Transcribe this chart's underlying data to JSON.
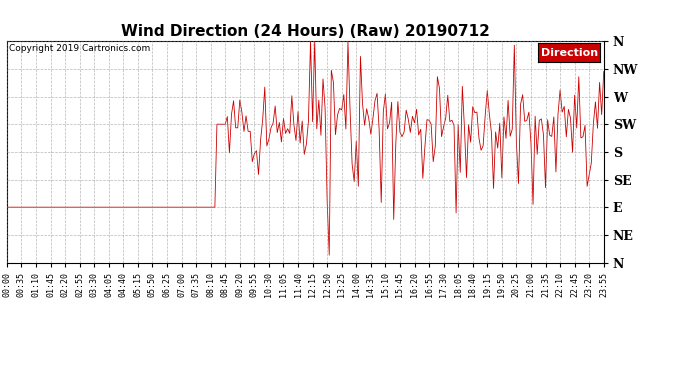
{
  "title": "Wind Direction (24 Hours) (Raw) 20190712",
  "copyright": "Copyright 2019 Cartronics.com",
  "legend_label": "Direction",
  "legend_bg": "#cc0000",
  "legend_text_color": "#ffffff",
  "line_color": "#cc0000",
  "background_color": "#ffffff",
  "grid_color": "#888888",
  "ytick_labels": [
    "N",
    "NW",
    "W",
    "SW",
    "S",
    "SE",
    "E",
    "NE",
    "N"
  ],
  "ytick_values": [
    360,
    315,
    270,
    225,
    180,
    135,
    90,
    45,
    0
  ],
  "ylim": [
    0,
    360
  ],
  "tick_interval_minutes": 35,
  "data_interval_minutes": 5,
  "total_minutes": 1440
}
